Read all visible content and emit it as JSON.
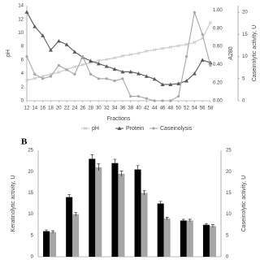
{
  "chart_data": [
    {
      "type": "line",
      "x_label": "Fractions",
      "y_label": "pH",
      "y2_label": "A280",
      "y3_label": "Caseinolytic activity, U",
      "x": [
        12,
        14,
        16,
        18,
        20,
        22,
        24,
        26,
        28,
        30,
        32,
        34,
        36,
        38,
        40,
        42,
        44,
        46,
        48,
        50,
        52,
        54,
        56,
        58
      ],
      "xlim": [
        12,
        58
      ],
      "xticks": [
        12,
        14,
        16,
        18,
        20,
        22,
        24,
        26,
        28,
        30,
        32,
        34,
        36,
        38,
        40,
        42,
        44,
        46,
        48,
        50,
        52,
        54,
        56,
        58
      ],
      "ylim": [
        0,
        14
      ],
      "yticks": [
        0,
        2,
        4,
        6,
        8,
        10,
        12,
        14
      ],
      "y2lim": [
        0,
        1.05
      ],
      "y2ticks": [
        {
          "value": 0,
          "label": "0.00"
        },
        {
          "value": 0.2,
          "label": "0.20"
        },
        {
          "value": 0.4,
          "label": "0.40"
        },
        {
          "value": 0.6,
          "label": "0.60"
        },
        {
          "value": 0.8,
          "label": "0.80"
        },
        {
          "value": 1,
          "label": "1.00"
        }
      ],
      "y3lim": [
        0,
        21.5
      ],
      "y3ticks": [
        0,
        5,
        10,
        15,
        20
      ],
      "legend": "bottom",
      "series": [
        {
          "name": "pH",
          "color": "#c8c8c8",
          "marker": "x",
          "values": [
            3.0,
            3.3,
            3.6,
            3.9,
            4.2,
            4.6,
            5.0,
            5.3,
            5.6,
            5.9,
            6.1,
            6.3,
            6.6,
            6.8,
            7.0,
            7.3,
            7.5,
            7.7,
            7.9,
            8.1,
            8.3,
            8.6,
            9.2,
            11.5
          ]
        },
        {
          "name": "Protein",
          "color": "#595959",
          "marker": "triangle",
          "axis": "y2",
          "values": [
            0.98,
            0.82,
            0.72,
            0.56,
            0.66,
            0.62,
            0.54,
            0.48,
            0.44,
            0.41,
            0.38,
            0.35,
            0.32,
            0.32,
            0.3,
            0.27,
            0.24,
            0.18,
            0.18,
            0.19,
            0.22,
            0.3,
            0.45,
            0.42
          ]
        },
        {
          "name": "Caseinolysis",
          "color": "#a6a6a6",
          "marker": "circle",
          "axis": "y3",
          "values": [
            10,
            6,
            5,
            5.5,
            8,
            7,
            6,
            10,
            6,
            5,
            5,
            4.5,
            5,
            1,
            1,
            0.5,
            0,
            0,
            0,
            1,
            10,
            20,
            15,
            8
          ]
        }
      ]
    },
    {
      "type": "bar",
      "panel_label": "B",
      "y_label": "Keratinolytic activity, U",
      "y2_label": "Caseinolytic activity, U",
      "categories": [
        null,
        null,
        null,
        null,
        null,
        null,
        null,
        null
      ],
      "ylim": [
        0,
        25
      ],
      "yticks": [
        0,
        5,
        10,
        15,
        20,
        25
      ],
      "y2lim": [
        0,
        25
      ],
      "y2ticks": [
        0,
        5,
        10,
        15,
        20,
        25
      ],
      "series": [
        {
          "color": "#000000",
          "values": [
            6,
            14,
            23,
            22,
            20.5,
            12.5,
            8.5,
            7.5
          ],
          "errors": [
            0.3,
            0.6,
            1.0,
            0.9,
            0.9,
            0.5,
            0.3,
            0.3
          ]
        },
        {
          "color": "#a6a6a6",
          "axis": "y2",
          "values": [
            5.8,
            10,
            21,
            19.5,
            15,
            9,
            8.5,
            7.2
          ],
          "errors": [
            0.3,
            0.4,
            0.8,
            0.6,
            0.5,
            0.3,
            0.3,
            0.3
          ]
        }
      ]
    }
  ]
}
